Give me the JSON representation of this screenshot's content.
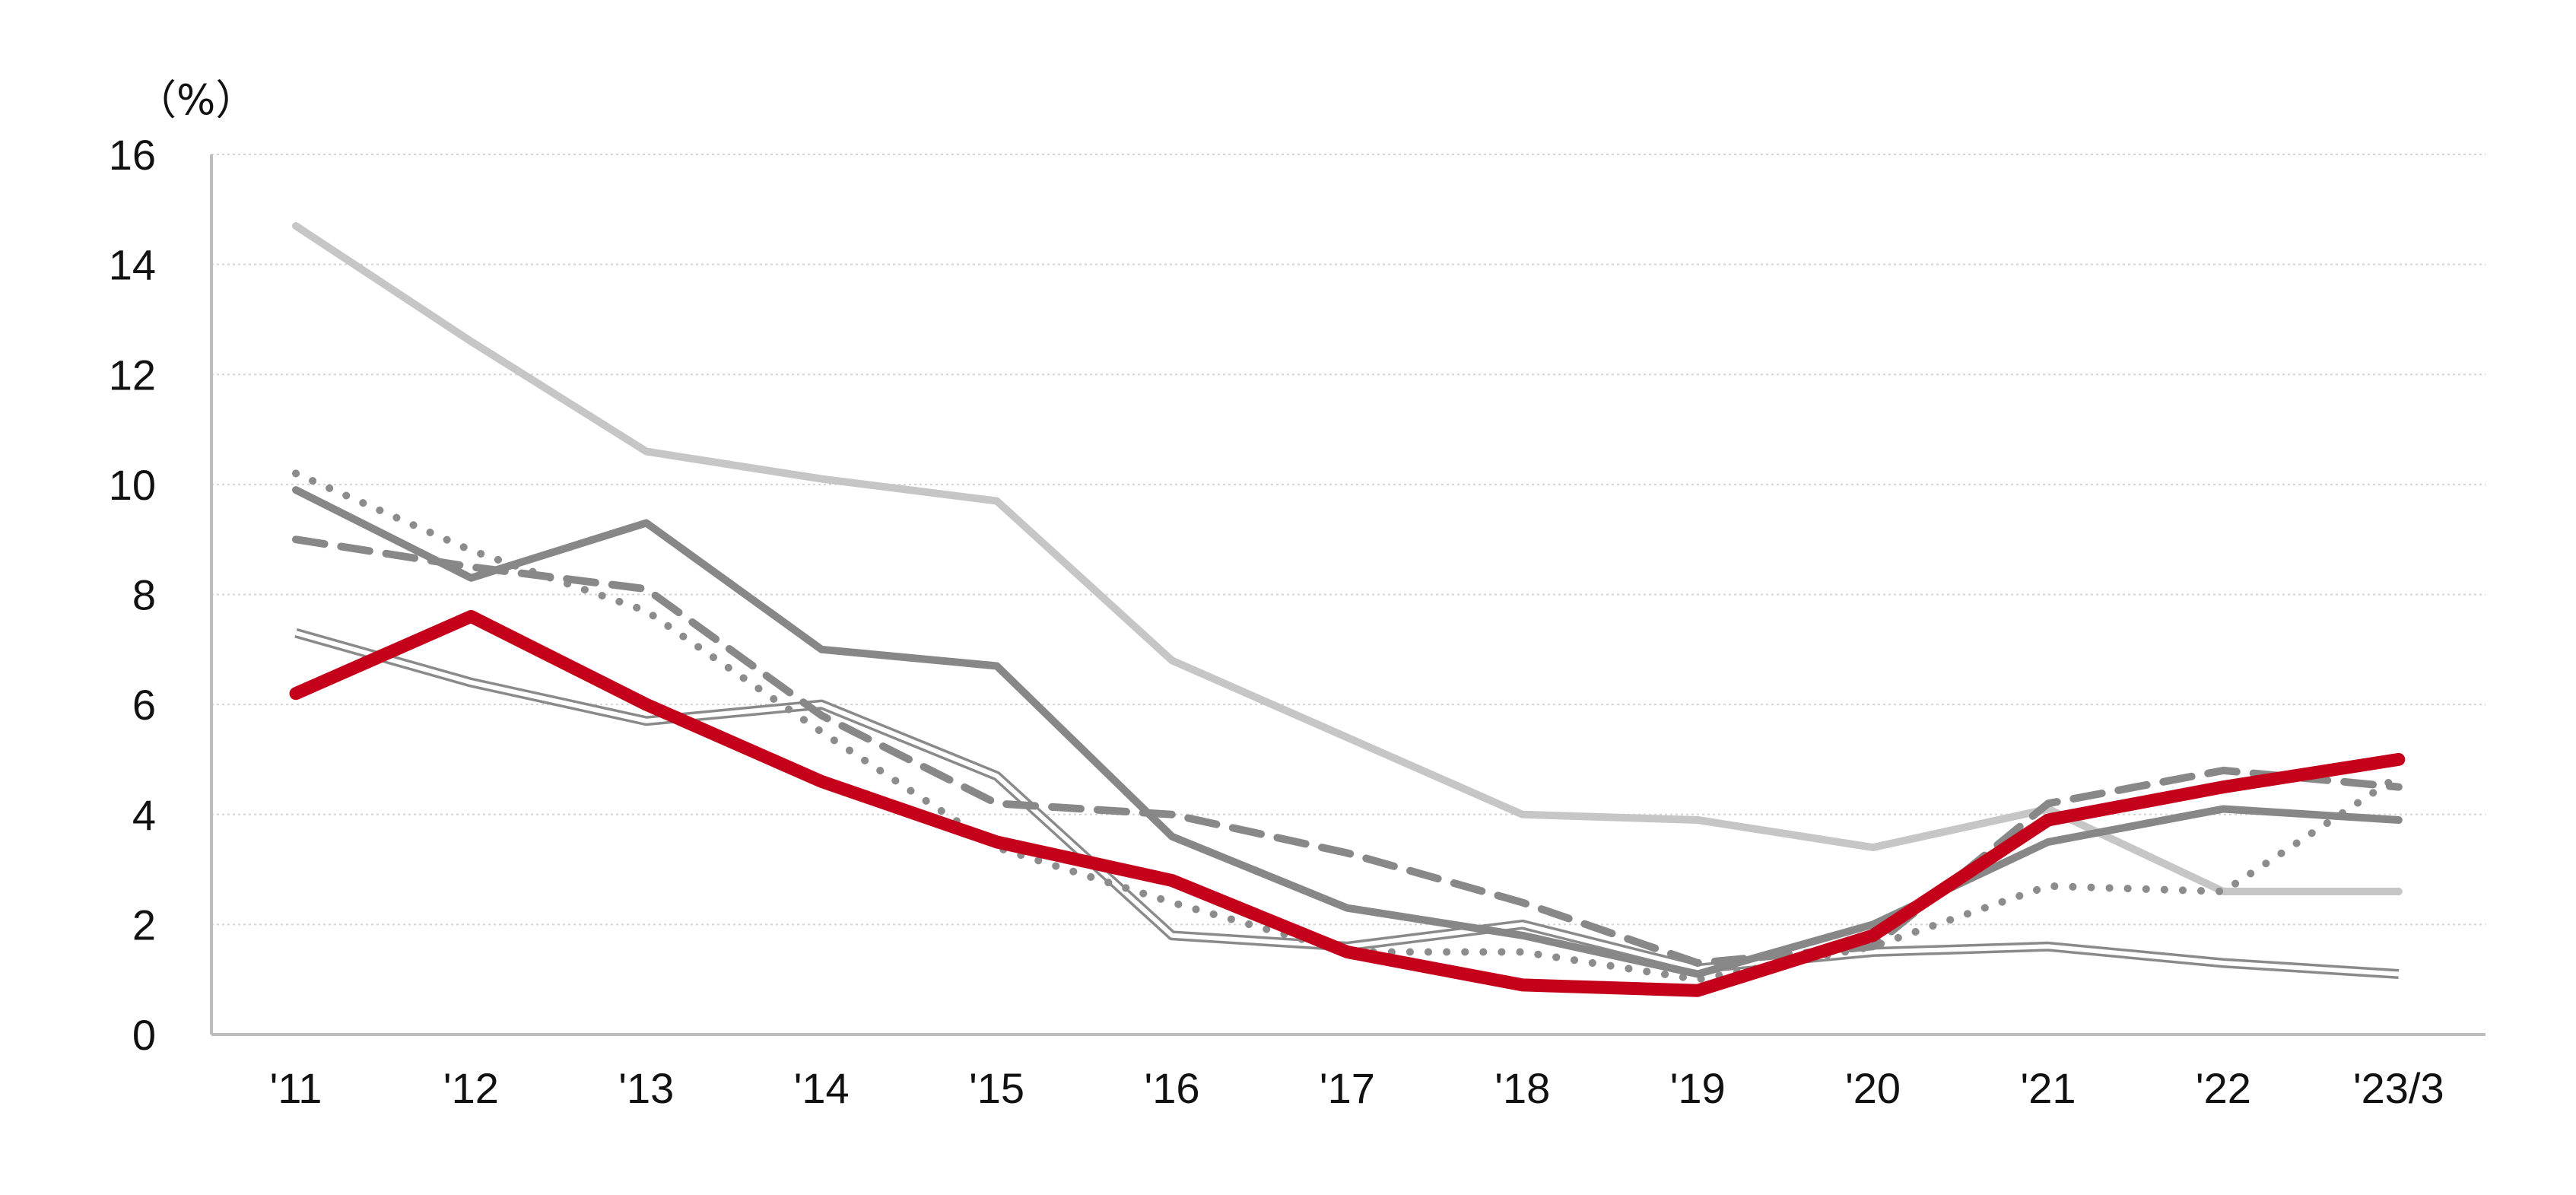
{
  "chart_data": {
    "type": "line",
    "unit_label": "（%）",
    "categories": [
      "'11",
      "'12",
      "'13",
      "'14",
      "'15",
      "'16",
      "'17",
      "'18",
      "'19",
      "'20",
      "'21",
      "'22",
      "'23/3"
    ],
    "ylim": [
      0,
      16
    ],
    "yticks": [
      "0",
      "2",
      "4",
      "6",
      "8",
      "10",
      "12",
      "14",
      "16"
    ],
    "grid": "horizontal dotted",
    "series": [
      {
        "id": "light-gray-solid",
        "values": [
          14.7,
          12.6,
          10.6,
          10.1,
          9.7,
          6.8,
          5.4,
          4.0,
          3.9,
          3.4,
          4.1,
          2.6,
          2.6
        ],
        "color": "#c6c6c6",
        "style": "solid"
      },
      {
        "id": "double-line",
        "values": [
          7.3,
          6.4,
          5.7,
          6.0,
          4.7,
          1.8,
          1.6,
          2.0,
          1.2,
          1.5,
          1.6,
          1.3,
          1.1
        ],
        "color": "#8a8a8a",
        "style": "double"
      },
      {
        "id": "dotted",
        "values": [
          10.2,
          8.8,
          7.7,
          5.5,
          3.4,
          2.4,
          1.5,
          1.5,
          1.0,
          1.6,
          2.7,
          2.6,
          4.7
        ],
        "color": "#8c8c8c",
        "style": "dotted"
      },
      {
        "id": "dashed",
        "values": [
          9.0,
          8.5,
          8.1,
          5.8,
          4.2,
          4.0,
          3.3,
          2.4,
          1.3,
          1.6,
          4.2,
          4.8,
          4.5
        ],
        "color": "#888888",
        "style": "dashed"
      },
      {
        "id": "dark-gray-solid",
        "values": [
          9.9,
          8.3,
          9.3,
          7.0,
          6.7,
          3.6,
          2.3,
          1.8,
          1.1,
          2.0,
          3.5,
          4.1,
          3.9
        ],
        "color": "#878787",
        "style": "solid"
      },
      {
        "id": "red-highlight",
        "values": [
          6.2,
          7.6,
          6.0,
          4.6,
          3.5,
          2.8,
          1.5,
          0.9,
          0.8,
          1.8,
          3.9,
          4.5,
          5.0
        ],
        "color": "#c4001a",
        "style": "bold"
      }
    ]
  }
}
